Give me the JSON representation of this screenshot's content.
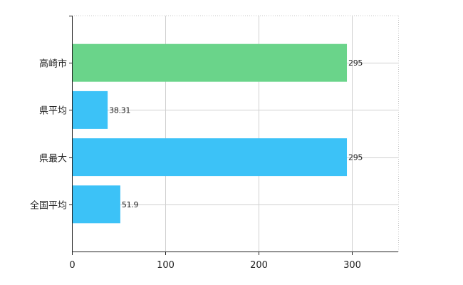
{
  "chart_data": {
    "type": "bar",
    "orientation": "horizontal",
    "categories": [
      "高崎市",
      "県平均",
      "県最大",
      "全国平均"
    ],
    "values": [
      295,
      38.31,
      295,
      51.9
    ],
    "data_labels": [
      "295",
      "38.31",
      "295",
      "51.9"
    ],
    "colors": [
      "#6ad48a",
      "#3cc2f7",
      "#3cc2f7",
      "#3cc2f7"
    ],
    "xlim": [
      0,
      350
    ],
    "x_ticks": [
      0,
      100,
      200,
      300
    ],
    "x_tick_labels": [
      "0",
      "100",
      "200",
      "300"
    ],
    "grid": true,
    "title": "",
    "xlabel": "",
    "ylabel": ""
  }
}
